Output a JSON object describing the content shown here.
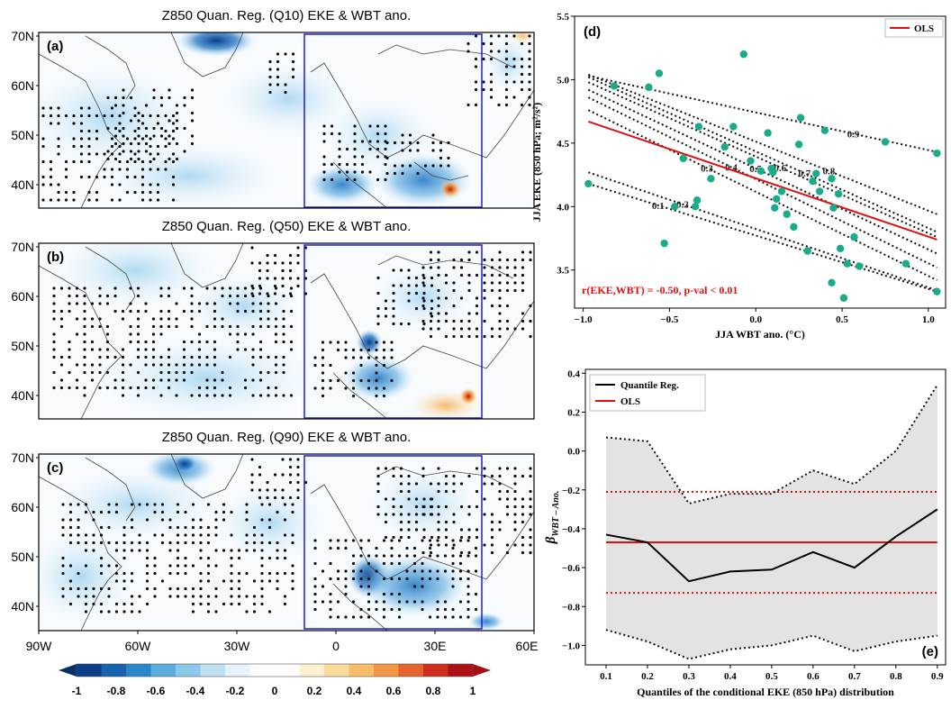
{
  "maps": {
    "panels": [
      {
        "title": "Z850 Quan. Reg. (Q10) EKE & WBT ano.",
        "label": "(a)"
      },
      {
        "title": "Z850 Quan. Reg. (Q50) EKE & WBT ano.",
        "label": "(b)"
      },
      {
        "title": "Z850 Quan. Reg. (Q90) EKE & WBT ano.",
        "label": "(c)"
      }
    ],
    "lat_ticks": [
      "70N",
      "60N",
      "50N",
      "40N"
    ],
    "lon_ticks": [
      "90W",
      "60W",
      "30W",
      "0",
      "30E",
      "60E"
    ],
    "colorbar_ticks": [
      "-1",
      "-0.8",
      "-0.6",
      "-0.4",
      "-0.2",
      "0",
      "0.2",
      "0.4",
      "0.6",
      "0.8",
      "1"
    ],
    "box_color": "#1f1fd6"
  },
  "chart_data": [
    {
      "type": "scatter",
      "panel_label": "(d)",
      "xlabel": "JJA WBT ano. (°C)",
      "ylabel": "JJA EKE (850 hPa; m²/s²)",
      "xlim": [
        -1.05,
        1.1
      ],
      "ylim": [
        3.2,
        5.5
      ],
      "xticks": [
        -1.0,
        -0.5,
        0.0,
        0.5,
        1.0
      ],
      "yticks": [
        3.5,
        4.0,
        4.5,
        5.0,
        5.5
      ],
      "legend": [
        "OLS"
      ],
      "annotation": "r(EKE,WBT) = -0.50, p-val < 0.01",
      "point_color": "#1aab8a",
      "ols_color": "#e01010",
      "points": [
        [
          -0.97,
          4.18
        ],
        [
          -0.82,
          4.95
        ],
        [
          -0.62,
          4.94
        ],
        [
          -0.56,
          5.05
        ],
        [
          -0.53,
          3.71
        ],
        [
          -0.47,
          4.0
        ],
        [
          -0.42,
          4.38
        ],
        [
          -0.34,
          4.05
        ],
        [
          -0.33,
          4.63
        ],
        [
          -0.35,
          4.0
        ],
        [
          -0.26,
          4.22
        ],
        [
          -0.18,
          4.47
        ],
        [
          -0.13,
          4.63
        ],
        [
          -0.07,
          5.2
        ],
        [
          -0.03,
          4.36
        ],
        [
          0.03,
          4.28
        ],
        [
          0.07,
          4.58
        ],
        [
          0.09,
          4.3
        ],
        [
          0.1,
          4.27
        ],
        [
          0.12,
          4.06
        ],
        [
          0.11,
          3.99
        ],
        [
          0.15,
          4.12
        ],
        [
          0.18,
          3.94
        ],
        [
          0.22,
          3.84
        ],
        [
          0.25,
          4.49
        ],
        [
          0.26,
          4.7
        ],
        [
          0.3,
          3.65
        ],
        [
          0.33,
          4.2
        ],
        [
          0.35,
          4.26
        ],
        [
          0.37,
          4.12
        ],
        [
          0.4,
          4.6
        ],
        [
          0.44,
          4.22
        ],
        [
          0.44,
          3.4
        ],
        [
          0.45,
          3.99
        ],
        [
          0.48,
          4.1
        ],
        [
          0.49,
          3.67
        ],
        [
          0.51,
          3.28
        ],
        [
          0.53,
          3.55
        ],
        [
          0.57,
          3.76
        ],
        [
          0.6,
          3.53
        ],
        [
          0.75,
          4.51
        ],
        [
          0.87,
          3.55
        ],
        [
          1.05,
          4.42
        ],
        [
          1.05,
          3.33
        ]
      ],
      "ols_line": [
        [
          -0.97,
          4.67
        ],
        [
          1.05,
          3.74
        ]
      ],
      "quantile_lines": [
        {
          "label": "0.1",
          "x0": -0.97,
          "y0": 4.18,
          "x1": 1.05,
          "y1": 3.33
        },
        {
          "label": "0.2",
          "x0": -0.97,
          "y0": 4.27,
          "x1": 1.05,
          "y1": 3.34
        },
        {
          "label": "0.3",
          "x0": -0.97,
          "y0": 4.76,
          "x1": 1.05,
          "y1": 3.42
        },
        {
          "label": "0.4",
          "x0": -0.97,
          "y0": 4.86,
          "x1": 1.05,
          "y1": 3.52
        },
        {
          "label": "0.5",
          "x0": -0.97,
          "y0": 4.92,
          "x1": 1.05,
          "y1": 3.63
        },
        {
          "label": "0.6",
          "x0": -0.97,
          "y0": 4.98,
          "x1": 1.05,
          "y1": 3.76
        },
        {
          "label": "0.7",
          "x0": -0.97,
          "y0": 5.02,
          "x1": 1.05,
          "y1": 3.8
        },
        {
          "label": "0.8",
          "x0": -0.97,
          "y0": 5.04,
          "x1": 1.05,
          "y1": 3.94
        },
        {
          "label": "0.9",
          "x0": -0.97,
          "y0": 5.03,
          "x1": 1.05,
          "y1": 4.43
        }
      ]
    },
    {
      "type": "line",
      "panel_label": "(e)",
      "xlabel": "Quantiles of the conditional EKE (850 hPa) distribution",
      "ylabel": "β WBT – Ano.",
      "xlim": [
        0.05,
        0.92
      ],
      "ylim": [
        -1.1,
        0.42
      ],
      "xticks": [
        0.1,
        0.2,
        0.3,
        0.4,
        0.5,
        0.6,
        0.7,
        0.8,
        0.9
      ],
      "yticks": [
        -1.0,
        -0.8,
        -0.6,
        -0.4,
        -0.2,
        0.0,
        0.2,
        0.4
      ],
      "legend": [
        "Quantile Reg.",
        "OLS"
      ],
      "x": [
        0.1,
        0.2,
        0.3,
        0.4,
        0.5,
        0.6,
        0.7,
        0.8,
        0.9
      ],
      "series": [
        {
          "name": "Quantile Reg.",
          "values": [
            -0.43,
            -0.47,
            -0.67,
            -0.62,
            -0.61,
            -0.52,
            -0.6,
            -0.44,
            -0.3
          ]
        }
      ],
      "upper": [
        0.07,
        0.05,
        -0.27,
        -0.22,
        -0.22,
        -0.1,
        -0.17,
        0.0,
        0.34
      ],
      "lower": [
        -0.92,
        -0.98,
        -1.07,
        -1.02,
        -1.0,
        -0.95,
        -1.03,
        -0.98,
        -0.95
      ],
      "ols": {
        "name": "OLS",
        "value": -0.47,
        "ci": [
          -0.21,
          -0.73
        ]
      }
    }
  ]
}
